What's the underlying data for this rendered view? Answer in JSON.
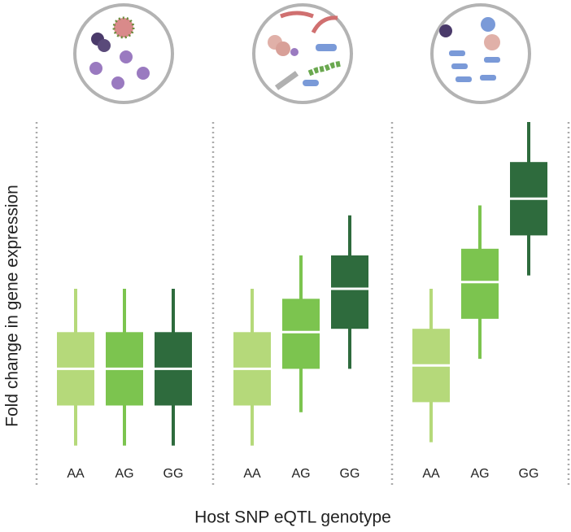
{
  "chart_data": {
    "type": "box",
    "y_label": "Fold change in gene expression",
    "x_label": "Host SNP eQTL genotype",
    "ylim": [
      0,
      100
    ],
    "colors": [
      "#b5d97a",
      "#7cc44f",
      "#2e6b3d"
    ],
    "panels": [
      {
        "categories": [
          "AA",
          "AG",
          "GG"
        ],
        "boxes": [
          {
            "min": 3,
            "q1": 15,
            "median": 26,
            "q3": 37,
            "max": 50
          },
          {
            "min": 3,
            "q1": 15,
            "median": 26,
            "q3": 37,
            "max": 50
          },
          {
            "min": 3,
            "q1": 15,
            "median": 26,
            "q3": 37,
            "max": 50
          }
        ]
      },
      {
        "categories": [
          "AA",
          "AG",
          "GG"
        ],
        "boxes": [
          {
            "min": 3,
            "q1": 15,
            "median": 26,
            "q3": 37,
            "max": 50
          },
          {
            "min": 13,
            "q1": 26,
            "median": 37,
            "q3": 47,
            "max": 60
          },
          {
            "min": 26,
            "q1": 38,
            "median": 50,
            "q3": 60,
            "max": 72
          }
        ]
      },
      {
        "categories": [
          "AA",
          "AG",
          "GG"
        ],
        "boxes": [
          {
            "min": 4,
            "q1": 16,
            "median": 27,
            "q3": 38,
            "max": 50
          },
          {
            "min": 29,
            "q1": 41,
            "median": 52,
            "q3": 62,
            "max": 75
          },
          {
            "min": 54,
            "q1": 66,
            "median": 77,
            "q3": 88,
            "max": 100
          }
        ]
      }
    ]
  }
}
